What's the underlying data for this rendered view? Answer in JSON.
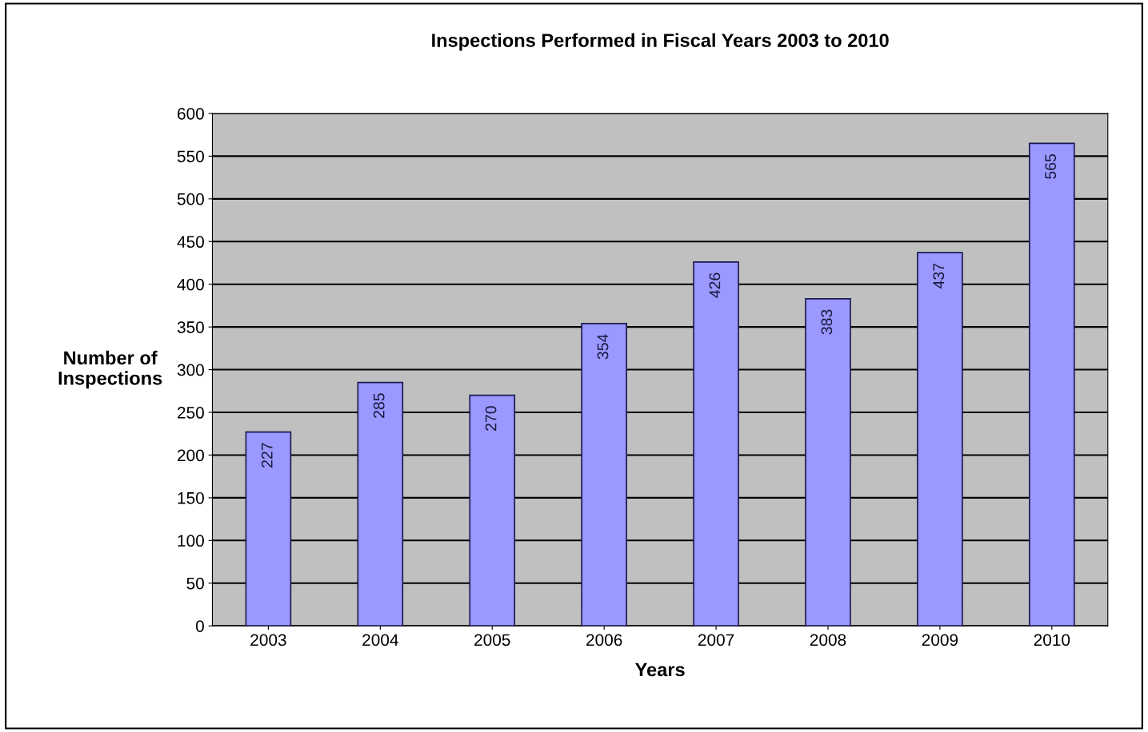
{
  "chart_data": {
    "type": "bar",
    "title": "Inspections Performed in Fiscal Years 2003 to 2010",
    "xlabel": "Years",
    "ylabel": "Number of\nInspections",
    "categories": [
      "2003",
      "2004",
      "2005",
      "2006",
      "2007",
      "2008",
      "2009",
      "2010"
    ],
    "values": [
      227,
      285,
      270,
      354,
      426,
      383,
      437,
      565
    ],
    "color": "#9999ff",
    "ylim": [
      0,
      600
    ],
    "yticks": [
      0,
      50,
      100,
      150,
      200,
      250,
      300,
      350,
      400,
      450,
      500,
      550,
      600
    ],
    "grid": "y",
    "data_labels": true
  }
}
